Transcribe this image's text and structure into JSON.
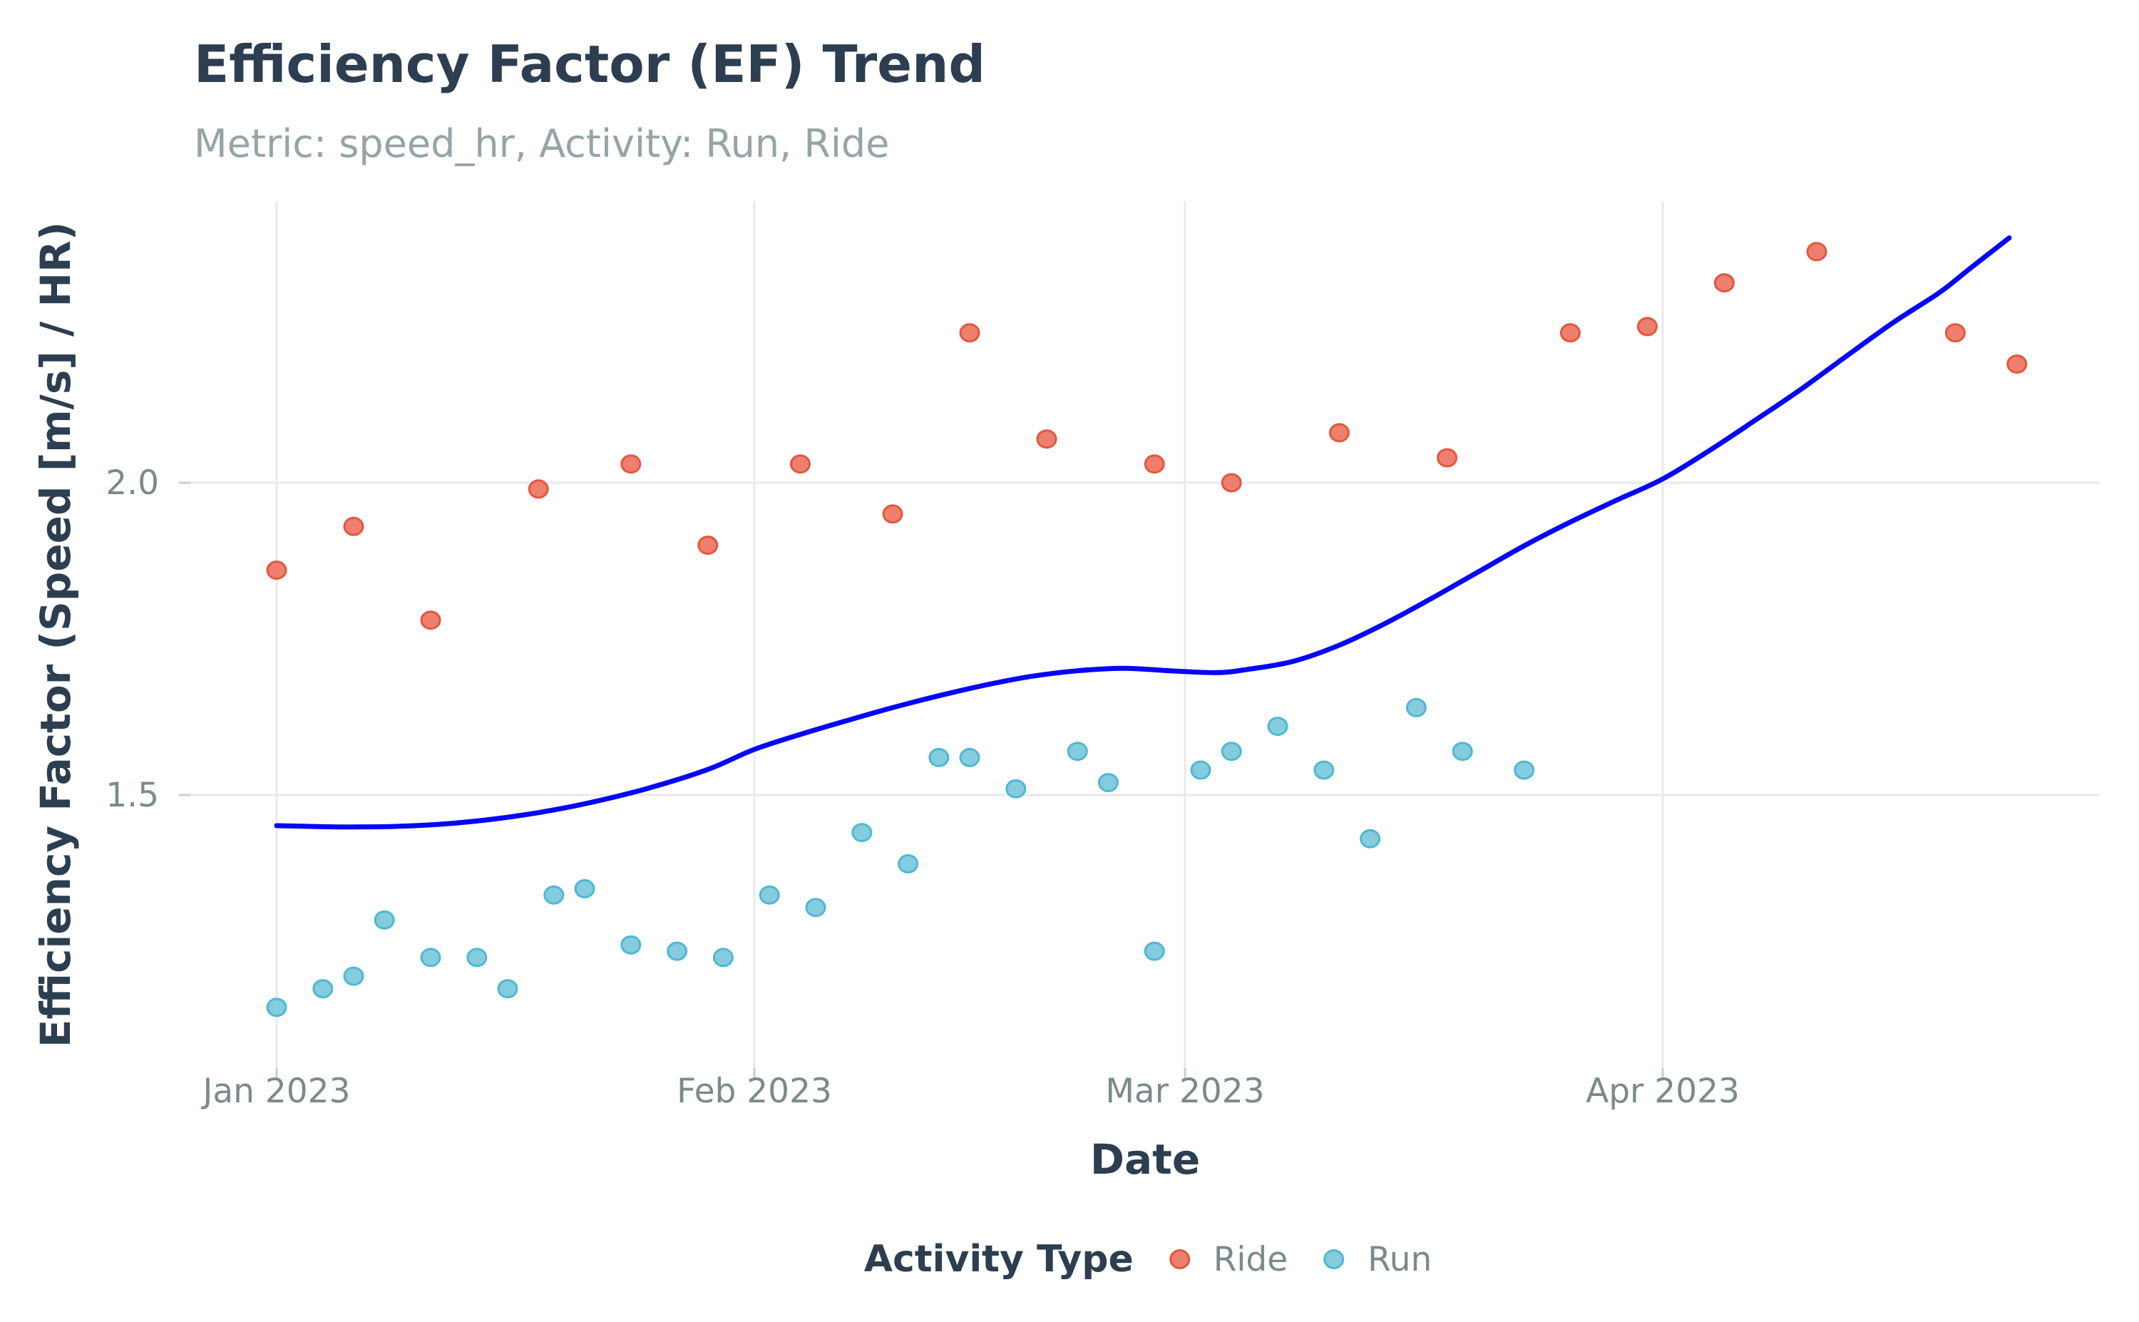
{
  "header": {
    "title": "Efficiency Factor (EF) Trend",
    "subtitle": "Metric: speed_hr, Activity: Run, Ride"
  },
  "axes": {
    "x_title": "Date",
    "y_title": "Efficiency Factor (Speed [m/s] / HR)"
  },
  "legend": {
    "title": "Activity Type",
    "items": [
      {
        "label": "Ride",
        "fill": "#EE7F6E",
        "stroke": "#E2573F"
      },
      {
        "label": "Run",
        "fill": "#84CCDE",
        "stroke": "#4FB8D3"
      }
    ]
  },
  "palette": {
    "title_text": "#2C3E50",
    "subtitle_text": "#95a5a6",
    "tick_text": "#7b8a8b",
    "gridline": "#e7eaeb",
    "tick_mark": "#c6cfcf",
    "trend_line": "#0606F5",
    "ride_fill": "#EE7F6E",
    "ride_stroke": "#E2573F",
    "run_fill": "#84CCDE",
    "run_stroke": "#4FB8D3",
    "background": "#ffffff"
  },
  "chart_data": {
    "type": "scatter",
    "title": "Efficiency Factor (EF) Trend",
    "subtitle": "Metric: speed_hr, Activity: Run, Ride",
    "xlabel": "Date",
    "ylabel": "Efficiency Factor (Speed [m/s] / HR)",
    "grid": true,
    "legend_position": "bottom",
    "x_unit": "date",
    "x_epoch": "2023-01-01",
    "x_ticks": [
      {
        "label": "Jan 2023",
        "date": "2023-01-01"
      },
      {
        "label": "Feb 2023",
        "date": "2023-02-01"
      },
      {
        "label": "Mar 2023",
        "date": "2023-03-01"
      },
      {
        "label": "Apr 2023",
        "date": "2023-04-01"
      }
    ],
    "y_ticks": [
      {
        "label": "1.5",
        "value": 1.5
      },
      {
        "label": "2.0",
        "value": 2.0
      }
    ],
    "ylim": [
      1.06,
      2.45
    ],
    "xlim_days": [
      -5.6,
      118.4
    ],
    "series": [
      {
        "name": "Ride",
        "marker_fill": "#EE7F6E",
        "marker_stroke": "#E2573F",
        "points": [
          {
            "date": "2023-01-01",
            "ef": 1.86
          },
          {
            "date": "2023-01-06",
            "ef": 1.93
          },
          {
            "date": "2023-01-11",
            "ef": 1.78
          },
          {
            "date": "2023-01-18",
            "ef": 1.99
          },
          {
            "date": "2023-01-24",
            "ef": 2.03
          },
          {
            "date": "2023-01-29",
            "ef": 1.9
          },
          {
            "date": "2023-02-04",
            "ef": 2.03
          },
          {
            "date": "2023-02-10",
            "ef": 1.95
          },
          {
            "date": "2023-02-15",
            "ef": 2.24
          },
          {
            "date": "2023-02-20",
            "ef": 2.07
          },
          {
            "date": "2023-02-27",
            "ef": 2.03
          },
          {
            "date": "2023-03-04",
            "ef": 2.0
          },
          {
            "date": "2023-03-11",
            "ef": 2.08
          },
          {
            "date": "2023-03-18",
            "ef": 2.04
          },
          {
            "date": "2023-03-26",
            "ef": 2.24
          },
          {
            "date": "2023-03-31",
            "ef": 2.25
          },
          {
            "date": "2023-04-05",
            "ef": 2.32
          },
          {
            "date": "2023-04-11",
            "ef": 2.37
          },
          {
            "date": "2023-04-20",
            "ef": 2.24
          },
          {
            "date": "2023-04-24",
            "ef": 2.19
          }
        ]
      },
      {
        "name": "Run",
        "marker_fill": "#84CCDE",
        "marker_stroke": "#4FB8D3",
        "points": [
          {
            "date": "2023-01-01",
            "ef": 1.16
          },
          {
            "date": "2023-01-04",
            "ef": 1.19
          },
          {
            "date": "2023-01-06",
            "ef": 1.21
          },
          {
            "date": "2023-01-08",
            "ef": 1.3
          },
          {
            "date": "2023-01-11",
            "ef": 1.24
          },
          {
            "date": "2023-01-14",
            "ef": 1.24
          },
          {
            "date": "2023-01-16",
            "ef": 1.19
          },
          {
            "date": "2023-01-19",
            "ef": 1.34
          },
          {
            "date": "2023-01-21",
            "ef": 1.35
          },
          {
            "date": "2023-01-24",
            "ef": 1.26
          },
          {
            "date": "2023-01-27",
            "ef": 1.25
          },
          {
            "date": "2023-01-30",
            "ef": 1.24
          },
          {
            "date": "2023-02-02",
            "ef": 1.34
          },
          {
            "date": "2023-02-05",
            "ef": 1.32
          },
          {
            "date": "2023-02-08",
            "ef": 1.44
          },
          {
            "date": "2023-02-11",
            "ef": 1.39
          },
          {
            "date": "2023-02-13",
            "ef": 1.56
          },
          {
            "date": "2023-02-15",
            "ef": 1.56
          },
          {
            "date": "2023-02-18",
            "ef": 1.51
          },
          {
            "date": "2023-02-22",
            "ef": 1.57
          },
          {
            "date": "2023-02-24",
            "ef": 1.52
          },
          {
            "date": "2023-02-27",
            "ef": 1.25
          },
          {
            "date": "2023-03-02",
            "ef": 1.54
          },
          {
            "date": "2023-03-04",
            "ef": 1.57
          },
          {
            "date": "2023-03-07",
            "ef": 1.61
          },
          {
            "date": "2023-03-10",
            "ef": 1.54
          },
          {
            "date": "2023-03-13",
            "ef": 1.43
          },
          {
            "date": "2023-03-16",
            "ef": 1.64
          },
          {
            "date": "2023-03-19",
            "ef": 1.57
          },
          {
            "date": "2023-03-23",
            "ef": 1.54
          }
        ]
      }
    ],
    "trend": {
      "name": "smooth",
      "color": "#0606F5",
      "x_unit": "days since 2023-01-01",
      "points": [
        {
          "day": 0,
          "ef": 1.451
        },
        {
          "day": 4,
          "ef": 1.449
        },
        {
          "day": 8,
          "ef": 1.45
        },
        {
          "day": 12,
          "ef": 1.456
        },
        {
          "day": 16,
          "ef": 1.468
        },
        {
          "day": 20,
          "ef": 1.486
        },
        {
          "day": 24,
          "ef": 1.51
        },
        {
          "day": 28,
          "ef": 1.541
        },
        {
          "day": 31,
          "ef": 1.573
        },
        {
          "day": 34,
          "ef": 1.597
        },
        {
          "day": 37,
          "ef": 1.619
        },
        {
          "day": 40,
          "ef": 1.64
        },
        {
          "day": 43,
          "ef": 1.659
        },
        {
          "day": 46,
          "ef": 1.676
        },
        {
          "day": 49,
          "ef": 1.69
        },
        {
          "day": 52,
          "ef": 1.699
        },
        {
          "day": 55,
          "ef": 1.703
        },
        {
          "day": 58,
          "ef": 1.699
        },
        {
          "day": 61,
          "ef": 1.696
        },
        {
          "day": 63,
          "ef": 1.701
        },
        {
          "day": 66,
          "ef": 1.714
        },
        {
          "day": 69,
          "ef": 1.74
        },
        {
          "day": 72,
          "ef": 1.775
        },
        {
          "day": 75,
          "ef": 1.815
        },
        {
          "day": 78,
          "ef": 1.857
        },
        {
          "day": 81,
          "ef": 1.899
        },
        {
          "day": 84,
          "ef": 1.937
        },
        {
          "day": 87,
          "ef": 1.972
        },
        {
          "day": 90,
          "ef": 2.006
        },
        {
          "day": 93,
          "ef": 2.051
        },
        {
          "day": 96,
          "ef": 2.1
        },
        {
          "day": 99,
          "ef": 2.15
        },
        {
          "day": 102,
          "ef": 2.204
        },
        {
          "day": 105,
          "ef": 2.257
        },
        {
          "day": 108,
          "ef": 2.305
        },
        {
          "day": 110,
          "ef": 2.344
        },
        {
          "day": 112.5,
          "ef": 2.392
        }
      ]
    }
  }
}
